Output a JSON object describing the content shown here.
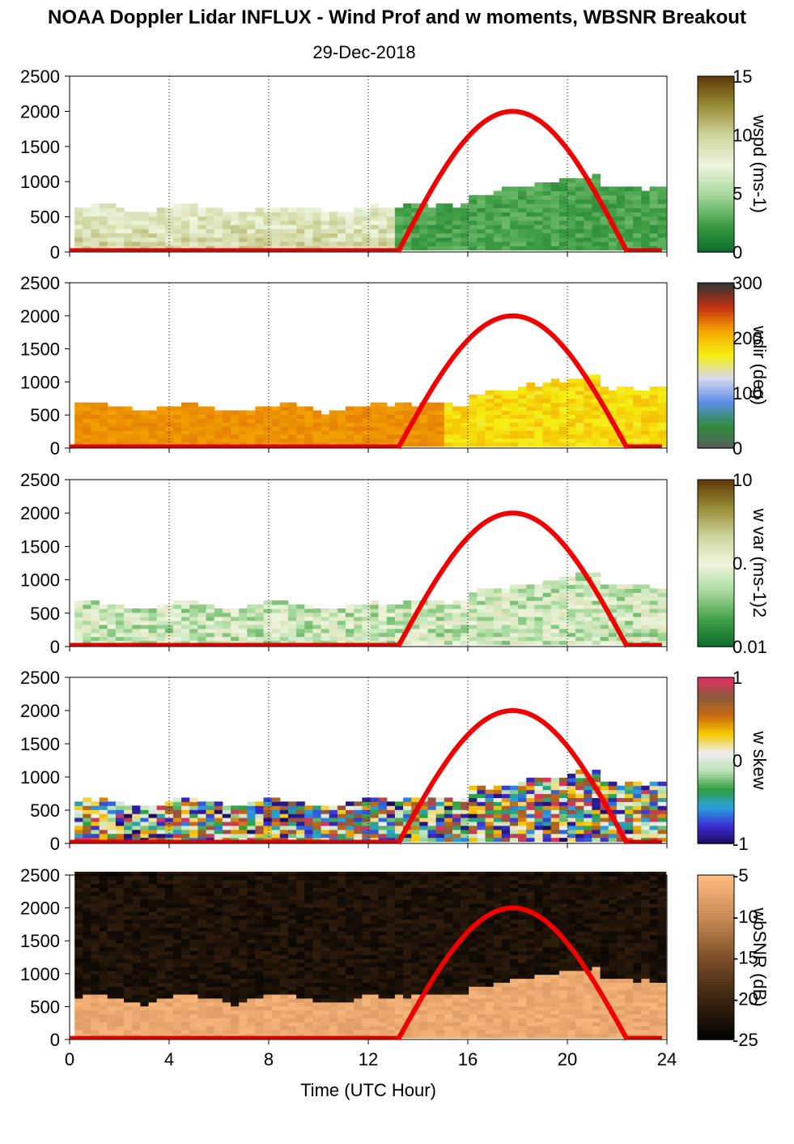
{
  "title": "NOAA Doppler Lidar INFLUX - Wind Prof and w moments, WBSNR Breakout",
  "date": "29-Dec-2018",
  "x_label": "Time (UTC Hour)",
  "x_ticks": [
    "0",
    "4",
    "8",
    "12",
    "16",
    "20",
    "24"
  ],
  "y_ticks": [
    "0",
    "500",
    "1000",
    "1500",
    "2000",
    "2500"
  ],
  "chart_data": [
    {
      "type": "heatmap",
      "variable": "wspd",
      "colorbar_label": "wspd (ms-1)",
      "colorbar_ticks": [
        "15",
        "10",
        "5",
        "0"
      ],
      "colors": [
        "#0b6b2c",
        "#3f9e45",
        "#a7d99c",
        "#eef5dd",
        "#cfd59e",
        "#9a8f3a",
        "#5f3d08"
      ],
      "x_range": [
        0,
        24
      ],
      "y_range": [
        0,
        2500
      ],
      "grid": true,
      "sun_elevation_curve": {
        "x": [
          13.2,
          14,
          15,
          16,
          17,
          17.8,
          18.5,
          19.5,
          20.5,
          21.5,
          22.4
        ],
        "y": [
          0,
          450,
          1100,
          1650,
          1950,
          2000,
          1950,
          1650,
          1100,
          450,
          0
        ]
      }
    },
    {
      "type": "heatmap",
      "variable": "wdir",
      "colorbar_label": "wdir (deg)",
      "colorbar_ticks": [
        "300",
        "200",
        "100",
        "0"
      ],
      "colors": [
        "#5a5a5a",
        "#2f8d3e",
        "#5b8ee8",
        "#d8d8f0",
        "#f5ee10",
        "#f5a600",
        "#c43110",
        "#353535"
      ],
      "x_range": [
        0,
        24
      ],
      "y_range": [
        0,
        2500
      ],
      "grid": true
    },
    {
      "type": "heatmap",
      "variable": "w var",
      "colorbar_label": "w var (ms-1)2",
      "colorbar_ticks": [
        "10",
        "0.",
        "0.01"
      ],
      "colors": [
        "#0b6b2c",
        "#3f9e45",
        "#a7d99c",
        "#eef5dd",
        "#cfd59e",
        "#9a8f3a",
        "#5f3d08"
      ],
      "x_range": [
        0,
        24
      ],
      "y_range": [
        0,
        2500
      ],
      "grid": true
    },
    {
      "type": "heatmap",
      "variable": "w skew",
      "colorbar_label": "w skew",
      "colorbar_ticks": [
        "1",
        "0",
        "-1"
      ],
      "colors": [
        "#1a0a5a",
        "#3b2bd0",
        "#2aa0e0",
        "#2f9f3f",
        "#bde3b5",
        "#eeeeee",
        "#f5c800",
        "#c96a10",
        "#8a5a3a",
        "#e03060"
      ],
      "x_range": [
        0,
        24
      ],
      "y_range": [
        0,
        2500
      ],
      "grid": true
    },
    {
      "type": "heatmap",
      "variable": "wbSNR",
      "colorbar_label": "wbSNR (dB)",
      "colorbar_ticks": [
        "-5",
        "-10",
        "-15",
        "-20",
        "-25"
      ],
      "colors": [
        "#000000",
        "#3a2410",
        "#7a4e28",
        "#c98a55",
        "#ffbb80"
      ],
      "x_range": [
        0,
        24
      ],
      "y_range": [
        0,
        2500
      ],
      "grid": false
    }
  ]
}
